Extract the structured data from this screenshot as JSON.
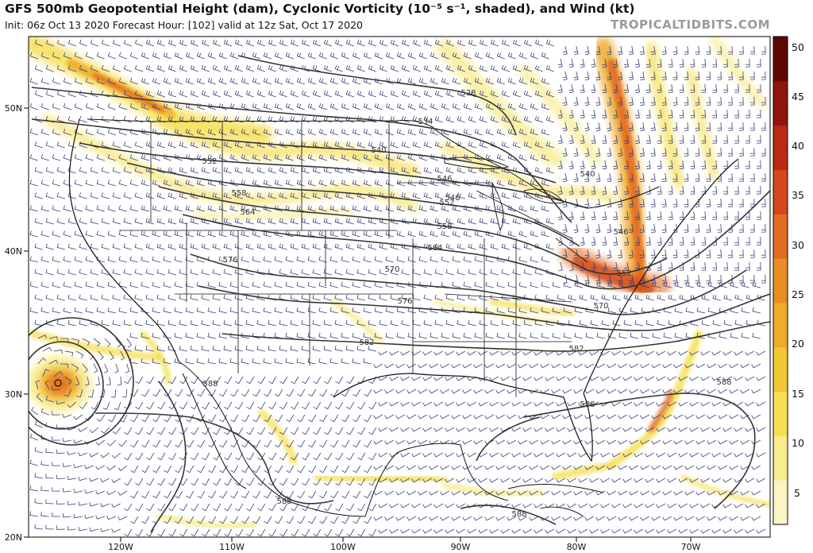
{
  "header": {
    "title": "GFS 500mb Geopotential Height (dam), Cyclonic Vorticity (10⁻⁵ s⁻¹, shaded), and Wind (kt)",
    "subtitle": "Init: 06z Oct 13 2020   Forecast Hour: [102]   valid at 12z Sat, Oct 17 2020",
    "brand": "TROPICALTIDBITS.COM"
  },
  "axes": {
    "lat_labels": [
      "50N",
      "40N",
      "30N",
      "20N"
    ],
    "lon_labels": [
      "120W",
      "110W",
      "100W",
      "90W",
      "80W",
      "70W"
    ]
  },
  "colorbar": {
    "ticks": [
      "50",
      "45",
      "40",
      "35",
      "30",
      "25",
      "20",
      "15",
      "10",
      "5"
    ],
    "colors": [
      "#fbf5c4",
      "#f8ec8e",
      "#f6df52",
      "#f2c733",
      "#eeab2c",
      "#e98d27",
      "#e36c23",
      "#d5471c",
      "#b92914",
      "#8f160c",
      "#5f0906"
    ]
  },
  "height_labels": [
    "528",
    "534",
    "540",
    "540",
    "546",
    "546",
    "546",
    "552",
    "552",
    "552",
    "558",
    "558",
    "564",
    "564",
    "570",
    "570",
    "576",
    "576",
    "582",
    "582",
    "588",
    "588",
    "588",
    "588",
    "588"
  ]
}
